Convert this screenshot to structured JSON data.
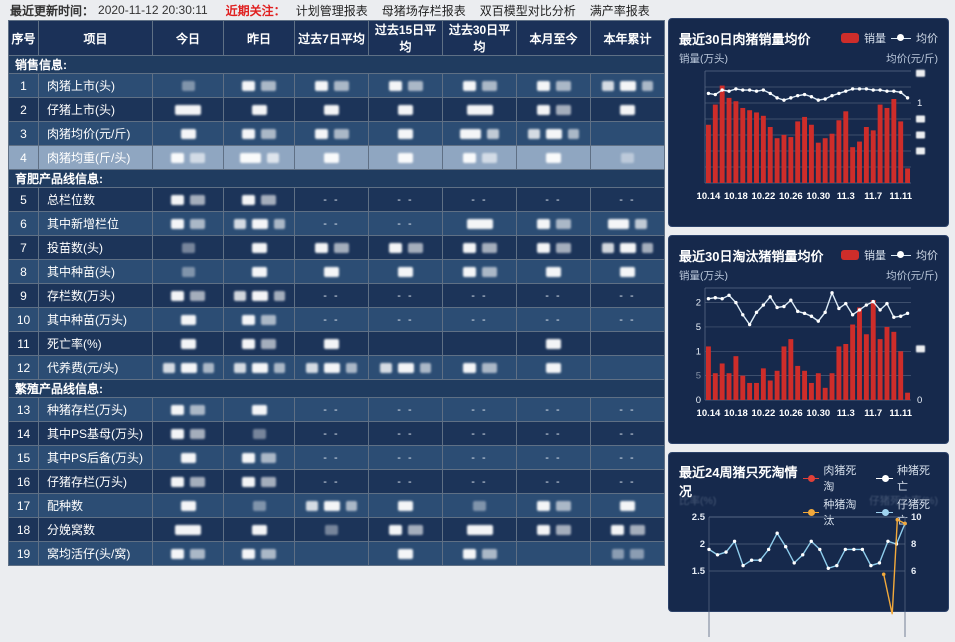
{
  "topbar": {
    "update_label": "最近更新时间：",
    "update_time": "2020-11-12 20:30:11",
    "focus_label": "近期关注：",
    "links": [
      "计划管理报表",
      "母猪场存栏报表",
      "双百模型对比分析",
      "满产率报表"
    ]
  },
  "table": {
    "columns": [
      "序号",
      "项目",
      "今日",
      "昨日",
      "过去7日平均",
      "过去15日平均",
      "过去30日平均",
      "本月至今",
      "本年累计"
    ],
    "selected_row": 4,
    "sections": [
      {
        "title": "销售信息:",
        "rows": [
          {
            "num": "1",
            "label": "肉猪上市(头)",
            "cells": [
              "b1d",
              "b2",
              "b2",
              "b2",
              "b2",
              "b2",
              "b3"
            ]
          },
          {
            "num": "2",
            "label": "仔猪上市(头)",
            "cells": [
              "b1w",
              "b1",
              "b1",
              "b1",
              "b1w",
              "b2",
              "b1"
            ]
          },
          {
            "num": "3",
            "label": "肉猪均价(元/斤)",
            "cells": [
              "b1",
              "b2",
              "b2",
              "b1",
              "b2w",
              "b3",
              ""
            ]
          },
          {
            "num": "4",
            "label": "肉猪均重(斤/头)",
            "cells": [
              "b2",
              "b2w",
              "b1",
              "b1",
              "b2",
              "b1",
              "b1d"
            ]
          }
        ]
      },
      {
        "title": "育肥产品线信息:",
        "rows": [
          {
            "num": "5",
            "label": "总栏位数",
            "cells": [
              "b2",
              "b2",
              "d",
              "d",
              "d",
              "d",
              "d"
            ]
          },
          {
            "num": "6",
            "label": "其中新增栏位",
            "cells": [
              "b2",
              "b3",
              "d",
              "d",
              "b1w",
              "b2",
              "b2w"
            ]
          },
          {
            "num": "7",
            "label": "投苗数(头)",
            "cells": [
              "b1d",
              "b1",
              "b2",
              "b2",
              "b2",
              "b2",
              "b3"
            ]
          },
          {
            "num": "8",
            "label": "其中种苗(头)",
            "cells": [
              "b1d",
              "b1",
              "b1",
              "b1",
              "b2",
              "b1",
              "b1"
            ]
          },
          {
            "num": "9",
            "label": "存栏数(万头)",
            "cells": [
              "b2",
              "b3",
              "d",
              "d",
              "d",
              "d",
              "d"
            ]
          },
          {
            "num": "10",
            "label": "其中种苗(万头)",
            "cells": [
              "b1",
              "b2",
              "d",
              "d",
              "d",
              "d",
              "d"
            ]
          },
          {
            "num": "11",
            "label": "死亡率(%)",
            "cells": [
              "b1",
              "b2",
              "b1",
              "",
              "",
              "b1",
              ""
            ]
          },
          {
            "num": "12",
            "label": "代养费(元/头)",
            "cells": [
              "b3",
              "b3",
              "b3",
              "b3",
              "b2",
              "b1",
              ""
            ]
          }
        ]
      },
      {
        "title": "繁殖产品线信息:",
        "rows": [
          {
            "num": "13",
            "label": "种猪存栏(万头)",
            "cells": [
              "b2",
              "b1",
              "d",
              "d",
              "d",
              "d",
              "d"
            ]
          },
          {
            "num": "14",
            "label": "其中PS基母(万头)",
            "cells": [
              "b2",
              "b1d",
              "d",
              "d",
              "d",
              "d",
              "d"
            ]
          },
          {
            "num": "15",
            "label": "其中PS后备(万头)",
            "cells": [
              "b1",
              "b2",
              "d",
              "d",
              "d",
              "d",
              "d"
            ]
          },
          {
            "num": "16",
            "label": "仔猪存栏(万头)",
            "cells": [
              "b2",
              "b2",
              "d",
              "d",
              "d",
              "d",
              "d"
            ]
          },
          {
            "num": "17",
            "label": "配种数",
            "cells": [
              "b1",
              "b1d",
              "b3",
              "b1",
              "b1d",
              "b2",
              "b1"
            ]
          },
          {
            "num": "18",
            "label": "分娩窝数",
            "cells": [
              "b1w",
              "b1",
              "b1d",
              "b2",
              "b1w",
              "b2",
              "b2"
            ]
          },
          {
            "num": "19",
            "label": "窝均活仔(头/窝)",
            "cells": [
              "b2",
              "b2",
              "",
              "b1",
              "b2",
              "",
              "b2d"
            ]
          }
        ]
      }
    ],
    "dash_text": "- -"
  },
  "chart_data": [
    {
      "type": "bar+line",
      "title": "最近30日肉猪销量均价",
      "legend_bar": "销量",
      "legend_line": "均价",
      "ylabel_left": "销量(万头)",
      "ylabel_right": "均价(元/斤)",
      "x_tick_labels": [
        "10.14",
        "10.18",
        "10.22",
        "10.26",
        "10.30",
        "11.3",
        "11.7",
        "11.11"
      ],
      "right_axis_visible_tick": "1",
      "axis_note": "other y-axis tick values redacted",
      "bars_height_pct": [
        52,
        70,
        87,
        76,
        73,
        67,
        65,
        63,
        60,
        50,
        40,
        43,
        41,
        55,
        59,
        52,
        36,
        40,
        44,
        56,
        64,
        32,
        37,
        50,
        47,
        70,
        67,
        75,
        55,
        13
      ],
      "line_height_pct": [
        80,
        79,
        83,
        82,
        84,
        83,
        83,
        82,
        83,
        80,
        76,
        74,
        76,
        78,
        79,
        77,
        74,
        75,
        78,
        80,
        82,
        84,
        84,
        84,
        83,
        83,
        82,
        82,
        81,
        76
      ]
    },
    {
      "type": "bar+line",
      "title": "最近30日淘汰猪销量均价",
      "legend_bar": "销量",
      "legend_line": "均价",
      "ylabel_left": "销量(万头)",
      "ylabel_right": "均价(元/斤)",
      "x_tick_labels": [
        "10.14",
        "10.18",
        "10.22",
        "10.26",
        "10.30",
        "11.3",
        "11.7",
        "11.11"
      ],
      "y_left_ticks_visible": [
        "2",
        "5",
        "1",
        "5",
        "0"
      ],
      "y_right_ticks_visible": [
        "0"
      ],
      "ylim": [
        0,
        2.3
      ],
      "bars": [
        1.1,
        0.55,
        0.75,
        0.55,
        0.9,
        0.5,
        0.35,
        0.35,
        0.65,
        0.4,
        0.6,
        1.1,
        1.25,
        0.7,
        0.6,
        0.35,
        0.55,
        0.25,
        0.55,
        1.1,
        1.15,
        1.55,
        1.9,
        1.35,
        2.05,
        1.25,
        1.5,
        1.4,
        1.0,
        0.15
      ],
      "line": [
        2.08,
        2.1,
        2.08,
        2.15,
        2.0,
        1.75,
        1.55,
        1.8,
        1.95,
        2.12,
        1.9,
        1.92,
        2.05,
        1.82,
        1.78,
        1.72,
        1.62,
        1.8,
        2.2,
        1.88,
        1.98,
        1.75,
        1.85,
        1.95,
        2.02,
        1.85,
        1.98,
        1.7,
        1.72,
        1.78
      ]
    },
    {
      "type": "line",
      "title": "最近24周猪只死淘情况",
      "ylabel_left": "比率(%)",
      "ylabel_right": "仔猪死亡率(%)",
      "y_left_ticks": [
        "2.5",
        "2",
        "1.5"
      ],
      "y_right_ticks": [
        "10",
        "8",
        "6"
      ],
      "ylim_visible": [
        1.5,
        2.5
      ],
      "series": [
        {
          "label": "肉猪死淘",
          "color": "#e04038"
        },
        {
          "label": "种猪死亡",
          "color": "#ffffff"
        },
        {
          "label": "种猪淘汰",
          "color": "#f2a93b",
          "points": [
            {
              "x": 21.5,
              "y": 1.44
            },
            {
              "x": 22.5,
              "y": 0.7
            },
            {
              "x": 23.1,
              "y": 2.45
            },
            {
              "x": 24,
              "y": 2.38
            }
          ]
        },
        {
          "label": "仔猪死亡",
          "color": "#9ed2ef",
          "values": [
            1.9,
            1.8,
            1.85,
            2.05,
            1.6,
            1.7,
            1.7,
            1.9,
            2.2,
            1.95,
            1.65,
            1.8,
            2.05,
            1.9,
            1.55,
            1.6,
            1.9,
            1.9,
            1.9,
            1.6,
            1.65,
            2.05,
            2.0,
            2.38
          ]
        }
      ]
    }
  ],
  "colors": {
    "bar_red": "#ce2d2a",
    "alert_red": "#e01f1f",
    "avg_line": "#dcebf7",
    "panel_bg": "#16294c",
    "header_bg": "#1b3158",
    "row_dark": "#1c3459",
    "row_light": "#2c4d74",
    "row_selected": "#8fa6c1",
    "grid_line": "#4c5c78"
  }
}
